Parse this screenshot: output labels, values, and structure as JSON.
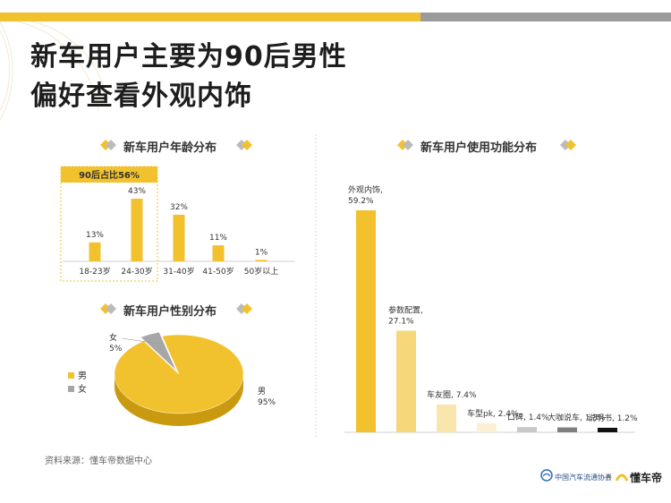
{
  "title_line1": "新车用户主要为90后男性",
  "title_line2": "偏好查看外观内饰",
  "section_age": "新车用户年龄分布",
  "section_gender": "新车用户性别分布",
  "section_function": "新车用户使用功能分布",
  "highlight_label": "90后占比56%",
  "source": "资料来源：懂车帝数据中心",
  "footer": {
    "org": "中国汽车流通协会",
    "times": "×",
    "brand": "懂车帝"
  },
  "colors": {
    "accent": "#f2c12e",
    "gray": "#9b9b9b",
    "dark": "#1d1d1d"
  },
  "chart_data": [
    {
      "type": "bar",
      "title": "新车用户年龄分布",
      "categories": [
        "18-23岁",
        "24-30岁",
        "31-40岁",
        "41-50岁",
        "50岁以上"
      ],
      "values": [
        13,
        43,
        32,
        11,
        1
      ],
      "labels": [
        "13%",
        "43%",
        "32%",
        "11%",
        "1%"
      ]
    },
    {
      "type": "pie",
      "title": "新车用户性别分布",
      "categories": [
        "男",
        "女"
      ],
      "values": [
        95,
        5
      ],
      "labels": [
        "男\n95%",
        "女\n5%"
      ],
      "legend": [
        "男",
        "女"
      ],
      "colors": [
        "#f2c12e",
        "#a6a6a6"
      ]
    },
    {
      "type": "bar",
      "title": "新车用户使用功能分布",
      "categories": [
        "外观内饰",
        "参数配置",
        "车友圈",
        "车型pk",
        "口碑",
        "大咖说车",
        "说明书"
      ],
      "values": [
        59.2,
        27.1,
        7.4,
        2.4,
        1.4,
        1.3,
        1.2
      ],
      "labels": [
        "外观内饰,\n59.2%",
        "参数配置,\n27.1%",
        "车友圈, 7.4%",
        "车型pk, 2.4%",
        "口碑, 1.4%",
        "大咖说车, 1.3%",
        "说明书, 1.2%"
      ],
      "colors": [
        "#f2c12e",
        "#f6d77a",
        "#f9e6ad",
        "#fbf0d3",
        "#c8c8c8",
        "#7f7f7f",
        "#111111"
      ]
    }
  ]
}
